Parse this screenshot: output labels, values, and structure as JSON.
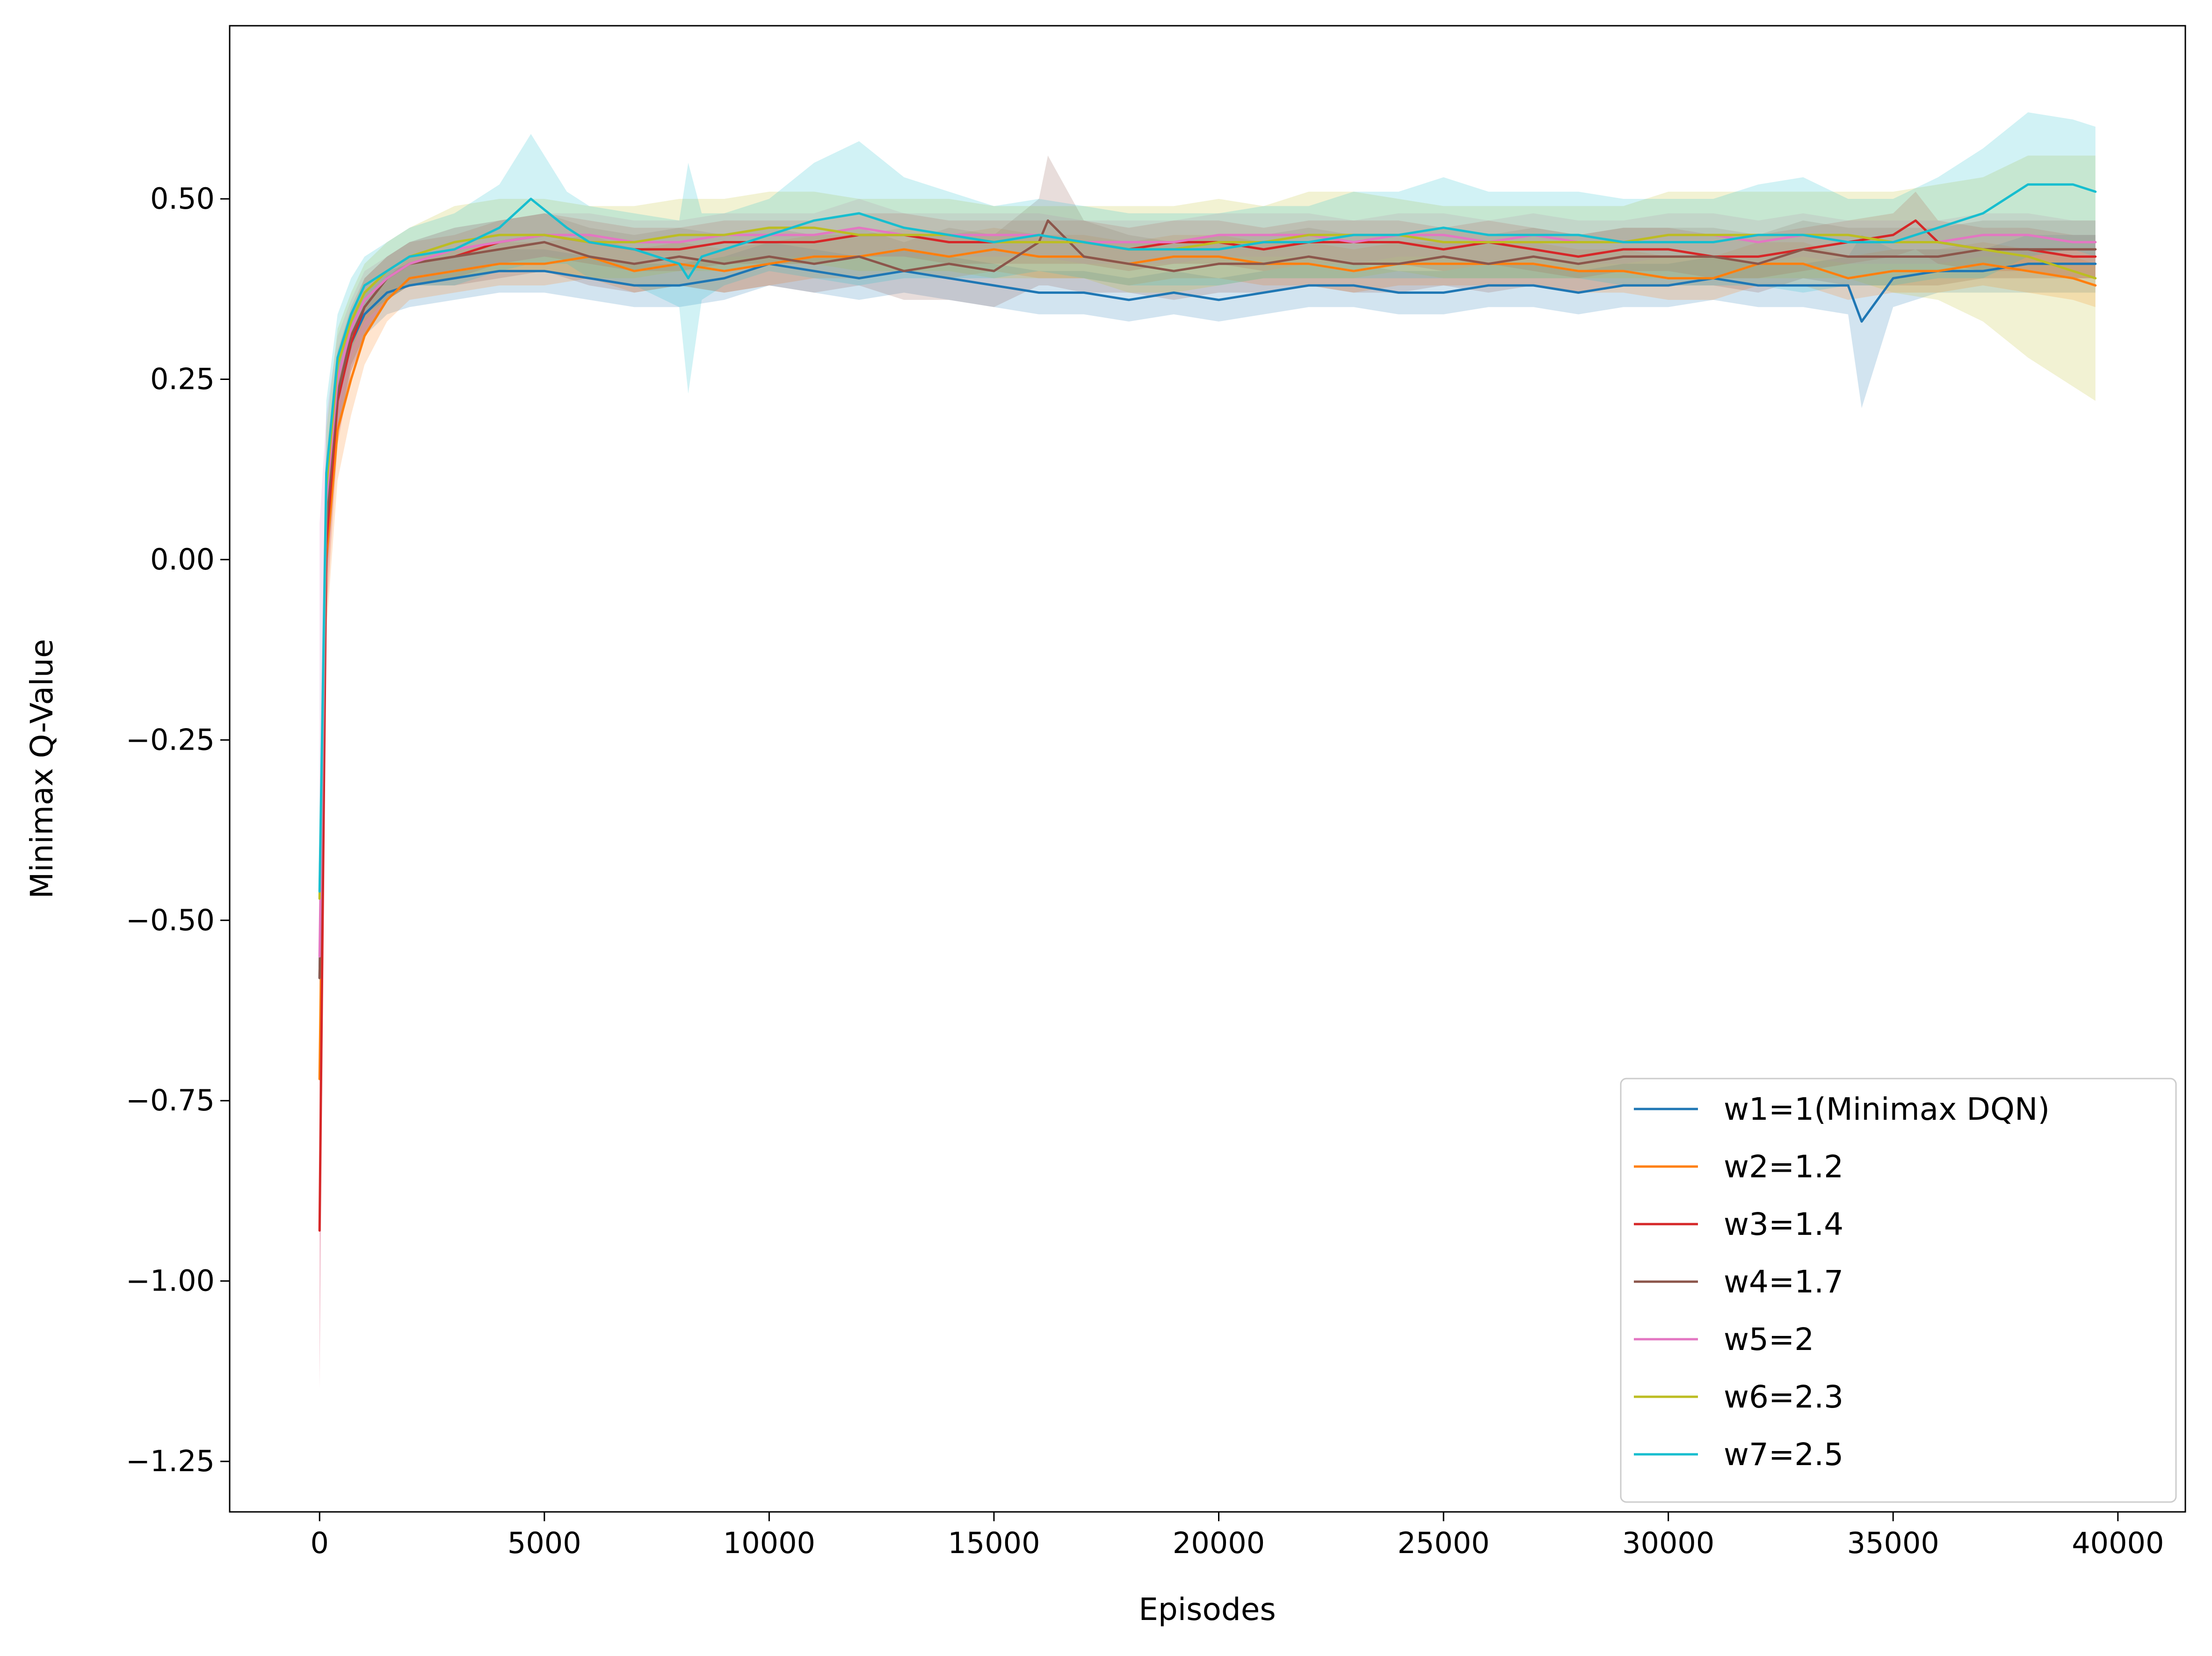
{
  "chart_data": {
    "type": "line",
    "xlabel": "Episodes",
    "ylabel": "Minimax Q-Value",
    "xlim": [
      -2000,
      41500
    ],
    "ylim": [
      -1.32,
      0.74
    ],
    "x_ticks": [
      0,
      5000,
      10000,
      15000,
      20000,
      25000,
      30000,
      35000,
      40000
    ],
    "x_tick_labels": [
      "0",
      "5000",
      "10000",
      "15000",
      "20000",
      "25000",
      "30000",
      "35000",
      "40000"
    ],
    "y_ticks": [
      -1.25,
      -1.0,
      -0.75,
      -0.5,
      -0.25,
      0.0,
      0.25,
      0.5
    ],
    "y_tick_labels": [
      "−1.25",
      "−1.00",
      "−0.75",
      "−0.50",
      "−0.25",
      "0.00",
      "0.25",
      "0.50"
    ],
    "grid": false,
    "legend_position": "lower-right",
    "shaded_band": "mean with shaded spread per series",
    "series": [
      {
        "name": "w1=1(Minimax DQN)",
        "color": "#1f77b4",
        "x": [
          0,
          150,
          400,
          700,
          1000,
          1500,
          2000,
          3000,
          4000,
          5000,
          6000,
          7000,
          8000,
          9000,
          10000,
          11000,
          12000,
          13000,
          14000,
          15000,
          16000,
          17000,
          18000,
          19000,
          20000,
          21000,
          22000,
          23000,
          24000,
          25000,
          26000,
          27000,
          28000,
          29000,
          30000,
          31000,
          32000,
          33000,
          34000,
          34300,
          35000,
          36000,
          37000,
          38000,
          39000,
          39500
        ],
        "y": [
          -0.58,
          0.05,
          0.22,
          0.3,
          0.34,
          0.37,
          0.38,
          0.39,
          0.4,
          0.4,
          0.39,
          0.38,
          0.38,
          0.39,
          0.41,
          0.4,
          0.39,
          0.4,
          0.39,
          0.38,
          0.37,
          0.37,
          0.36,
          0.37,
          0.36,
          0.37,
          0.38,
          0.38,
          0.37,
          0.37,
          0.38,
          0.38,
          0.37,
          0.38,
          0.38,
          0.39,
          0.38,
          0.38,
          0.38,
          0.33,
          0.39,
          0.4,
          0.4,
          0.41,
          0.41,
          0.41
        ],
        "spread": [
          0.02,
          0.08,
          0.05,
          0.04,
          0.03,
          0.03,
          0.03,
          0.03,
          0.03,
          0.03,
          0.03,
          0.03,
          0.03,
          0.03,
          0.03,
          0.03,
          0.03,
          0.03,
          0.03,
          0.03,
          0.03,
          0.03,
          0.03,
          0.03,
          0.03,
          0.03,
          0.03,
          0.03,
          0.03,
          0.03,
          0.03,
          0.03,
          0.03,
          0.03,
          0.03,
          0.03,
          0.03,
          0.03,
          0.04,
          0.12,
          0.04,
          0.03,
          0.03,
          0.04,
          0.04,
          0.04
        ]
      },
      {
        "name": "w2=1.2",
        "color": "#ff7f0e",
        "x": [
          0,
          150,
          400,
          700,
          1000,
          1500,
          2000,
          3000,
          4000,
          5000,
          6000,
          7000,
          8000,
          9000,
          10000,
          11000,
          12000,
          13000,
          14000,
          15000,
          16000,
          17000,
          18000,
          19000,
          20000,
          21000,
          22000,
          23000,
          24000,
          25000,
          26000,
          27000,
          28000,
          29000,
          30000,
          31000,
          32000,
          33000,
          34000,
          35000,
          36000,
          37000,
          38000,
          39000,
          39500
        ],
        "y": [
          -0.72,
          0.0,
          0.18,
          0.25,
          0.31,
          0.36,
          0.39,
          0.4,
          0.41,
          0.41,
          0.42,
          0.4,
          0.41,
          0.4,
          0.41,
          0.42,
          0.42,
          0.43,
          0.42,
          0.43,
          0.42,
          0.42,
          0.41,
          0.42,
          0.42,
          0.41,
          0.41,
          0.4,
          0.41,
          0.41,
          0.41,
          0.41,
          0.4,
          0.4,
          0.39,
          0.39,
          0.41,
          0.41,
          0.39,
          0.4,
          0.4,
          0.41,
          0.4,
          0.39,
          0.38
        ],
        "spread": [
          0.05,
          0.1,
          0.07,
          0.05,
          0.04,
          0.03,
          0.03,
          0.03,
          0.03,
          0.03,
          0.03,
          0.03,
          0.03,
          0.03,
          0.03,
          0.03,
          0.03,
          0.03,
          0.03,
          0.03,
          0.03,
          0.03,
          0.03,
          0.03,
          0.03,
          0.03,
          0.03,
          0.03,
          0.03,
          0.03,
          0.03,
          0.03,
          0.03,
          0.03,
          0.03,
          0.03,
          0.03,
          0.03,
          0.03,
          0.03,
          0.03,
          0.03,
          0.03,
          0.03,
          0.03
        ]
      },
      {
        "name": "w3=1.4",
        "color": "#d62728",
        "x": [
          0,
          150,
          400,
          700,
          1000,
          1500,
          2000,
          3000,
          4000,
          5000,
          6000,
          7000,
          8000,
          9000,
          10000,
          11000,
          12000,
          13000,
          14000,
          15000,
          16000,
          17000,
          18000,
          19000,
          20000,
          21000,
          22000,
          23000,
          24000,
          25000,
          26000,
          27000,
          28000,
          29000,
          30000,
          31000,
          32000,
          33000,
          34000,
          35000,
          35500,
          36000,
          37000,
          38000,
          39000,
          39500
        ],
        "y": [
          -0.93,
          0.02,
          0.22,
          0.3,
          0.35,
          0.39,
          0.41,
          0.42,
          0.44,
          0.45,
          0.44,
          0.43,
          0.43,
          0.44,
          0.44,
          0.44,
          0.45,
          0.45,
          0.44,
          0.44,
          0.44,
          0.44,
          0.43,
          0.44,
          0.44,
          0.43,
          0.44,
          0.44,
          0.44,
          0.43,
          0.44,
          0.43,
          0.42,
          0.43,
          0.43,
          0.42,
          0.42,
          0.43,
          0.44,
          0.45,
          0.47,
          0.44,
          0.43,
          0.43,
          0.42,
          0.42
        ],
        "spread": [
          0.22,
          0.1,
          0.06,
          0.04,
          0.04,
          0.03,
          0.03,
          0.03,
          0.03,
          0.03,
          0.03,
          0.03,
          0.03,
          0.03,
          0.03,
          0.03,
          0.03,
          0.03,
          0.03,
          0.03,
          0.03,
          0.03,
          0.03,
          0.03,
          0.03,
          0.03,
          0.03,
          0.03,
          0.03,
          0.03,
          0.03,
          0.03,
          0.03,
          0.03,
          0.03,
          0.03,
          0.03,
          0.03,
          0.03,
          0.03,
          0.04,
          0.03,
          0.03,
          0.03,
          0.03,
          0.03
        ]
      },
      {
        "name": "w4=1.7",
        "color": "#8c564b",
        "x": [
          0,
          150,
          400,
          700,
          1000,
          1500,
          2000,
          3000,
          4000,
          5000,
          6000,
          7000,
          8000,
          9000,
          10000,
          11000,
          12000,
          13000,
          14000,
          15000,
          16000,
          16200,
          17000,
          18000,
          19000,
          20000,
          21000,
          22000,
          23000,
          24000,
          25000,
          26000,
          27000,
          28000,
          29000,
          30000,
          31000,
          32000,
          33000,
          34000,
          35000,
          36000,
          37000,
          38000,
          39000,
          39500
        ],
        "y": [
          -0.58,
          0.05,
          0.23,
          0.31,
          0.35,
          0.39,
          0.41,
          0.42,
          0.43,
          0.44,
          0.42,
          0.41,
          0.42,
          0.41,
          0.42,
          0.41,
          0.42,
          0.4,
          0.41,
          0.4,
          0.44,
          0.47,
          0.42,
          0.41,
          0.4,
          0.41,
          0.41,
          0.42,
          0.41,
          0.41,
          0.42,
          0.41,
          0.42,
          0.41,
          0.42,
          0.42,
          0.42,
          0.41,
          0.43,
          0.42,
          0.42,
          0.42,
          0.43,
          0.43,
          0.43,
          0.43
        ],
        "spread": [
          0.05,
          0.09,
          0.06,
          0.04,
          0.04,
          0.03,
          0.03,
          0.04,
          0.04,
          0.04,
          0.04,
          0.04,
          0.04,
          0.04,
          0.04,
          0.04,
          0.04,
          0.04,
          0.05,
          0.05,
          0.06,
          0.09,
          0.05,
          0.04,
          0.04,
          0.04,
          0.04,
          0.04,
          0.04,
          0.04,
          0.04,
          0.04,
          0.04,
          0.04,
          0.04,
          0.04,
          0.04,
          0.04,
          0.04,
          0.04,
          0.04,
          0.04,
          0.04,
          0.04,
          0.04,
          0.04
        ]
      },
      {
        "name": "w5=2",
        "color": "#e377c2",
        "x": [
          0,
          150,
          400,
          700,
          1000,
          1500,
          2000,
          3000,
          4000,
          5000,
          6000,
          7000,
          8000,
          9000,
          10000,
          11000,
          12000,
          13000,
          14000,
          15000,
          16000,
          17000,
          18000,
          19000,
          20000,
          21000,
          22000,
          23000,
          24000,
          25000,
          26000,
          27000,
          28000,
          29000,
          30000,
          31000,
          32000,
          33000,
          34000,
          35000,
          36000,
          37000,
          38000,
          39000,
          39500
        ],
        "y": [
          -0.55,
          0.08,
          0.25,
          0.32,
          0.36,
          0.39,
          0.41,
          0.43,
          0.44,
          0.45,
          0.45,
          0.44,
          0.44,
          0.45,
          0.45,
          0.45,
          0.46,
          0.45,
          0.45,
          0.45,
          0.45,
          0.44,
          0.44,
          0.44,
          0.45,
          0.45,
          0.45,
          0.44,
          0.45,
          0.45,
          0.44,
          0.45,
          0.44,
          0.44,
          0.45,
          0.45,
          0.44,
          0.45,
          0.44,
          0.44,
          0.44,
          0.45,
          0.45,
          0.44,
          0.44
        ],
        "spread": [
          0.6,
          0.12,
          0.06,
          0.04,
          0.04,
          0.03,
          0.03,
          0.03,
          0.03,
          0.03,
          0.03,
          0.03,
          0.03,
          0.03,
          0.03,
          0.03,
          0.04,
          0.03,
          0.03,
          0.03,
          0.03,
          0.03,
          0.03,
          0.03,
          0.03,
          0.03,
          0.03,
          0.03,
          0.03,
          0.03,
          0.03,
          0.03,
          0.03,
          0.03,
          0.03,
          0.03,
          0.03,
          0.03,
          0.03,
          0.03,
          0.03,
          0.03,
          0.03,
          0.03,
          0.03
        ]
      },
      {
        "name": "w6=2.3",
        "color": "#bcbd22",
        "x": [
          0,
          150,
          400,
          700,
          1000,
          1500,
          2000,
          3000,
          4000,
          5000,
          6000,
          7000,
          8000,
          9000,
          10000,
          11000,
          12000,
          13000,
          14000,
          15000,
          16000,
          17000,
          18000,
          19000,
          20000,
          21000,
          22000,
          23000,
          24000,
          25000,
          26000,
          27000,
          28000,
          29000,
          30000,
          31000,
          32000,
          33000,
          34000,
          35000,
          36000,
          37000,
          38000,
          39000,
          39500
        ],
        "y": [
          -0.47,
          0.1,
          0.27,
          0.33,
          0.37,
          0.4,
          0.42,
          0.44,
          0.45,
          0.45,
          0.44,
          0.44,
          0.45,
          0.45,
          0.46,
          0.46,
          0.45,
          0.45,
          0.45,
          0.44,
          0.44,
          0.44,
          0.43,
          0.43,
          0.44,
          0.44,
          0.45,
          0.45,
          0.45,
          0.44,
          0.44,
          0.44,
          0.44,
          0.44,
          0.45,
          0.45,
          0.45,
          0.45,
          0.45,
          0.44,
          0.44,
          0.43,
          0.42,
          0.4,
          0.39
        ],
        "spread": [
          0.03,
          0.08,
          0.05,
          0.04,
          0.04,
          0.04,
          0.04,
          0.05,
          0.05,
          0.05,
          0.05,
          0.05,
          0.05,
          0.05,
          0.05,
          0.05,
          0.05,
          0.05,
          0.05,
          0.05,
          0.05,
          0.05,
          0.06,
          0.06,
          0.06,
          0.05,
          0.06,
          0.06,
          0.05,
          0.05,
          0.05,
          0.05,
          0.05,
          0.05,
          0.06,
          0.06,
          0.06,
          0.06,
          0.06,
          0.07,
          0.08,
          0.1,
          0.14,
          0.16,
          0.17
        ]
      },
      {
        "name": "w7=2.5",
        "color": "#17becf",
        "x": [
          0,
          150,
          400,
          700,
          1000,
          1500,
          2000,
          3000,
          4000,
          4700,
          5500,
          6000,
          7000,
          8000,
          8200,
          8500,
          9000,
          10000,
          11000,
          12000,
          13000,
          14000,
          15000,
          16000,
          17000,
          18000,
          19000,
          20000,
          21000,
          22000,
          23000,
          24000,
          25000,
          26000,
          27000,
          28000,
          29000,
          30000,
          31000,
          32000,
          33000,
          34000,
          35000,
          36000,
          37000,
          38000,
          39000,
          39500
        ],
        "y": [
          -0.46,
          0.12,
          0.28,
          0.34,
          0.38,
          0.4,
          0.42,
          0.43,
          0.46,
          0.5,
          0.46,
          0.44,
          0.43,
          0.41,
          0.39,
          0.42,
          0.43,
          0.45,
          0.47,
          0.48,
          0.46,
          0.45,
          0.44,
          0.45,
          0.44,
          0.43,
          0.43,
          0.43,
          0.44,
          0.44,
          0.45,
          0.45,
          0.46,
          0.45,
          0.45,
          0.45,
          0.44,
          0.44,
          0.44,
          0.45,
          0.45,
          0.44,
          0.44,
          0.46,
          0.48,
          0.52,
          0.52,
          0.51
        ],
        "spread": [
          0.03,
          0.1,
          0.06,
          0.05,
          0.04,
          0.04,
          0.04,
          0.05,
          0.06,
          0.09,
          0.05,
          0.05,
          0.05,
          0.06,
          0.16,
          0.06,
          0.05,
          0.05,
          0.08,
          0.1,
          0.07,
          0.06,
          0.05,
          0.05,
          0.05,
          0.05,
          0.05,
          0.05,
          0.05,
          0.05,
          0.06,
          0.06,
          0.07,
          0.06,
          0.06,
          0.06,
          0.06,
          0.06,
          0.06,
          0.07,
          0.08,
          0.06,
          0.06,
          0.07,
          0.09,
          0.1,
          0.09,
          0.09
        ]
      }
    ]
  }
}
